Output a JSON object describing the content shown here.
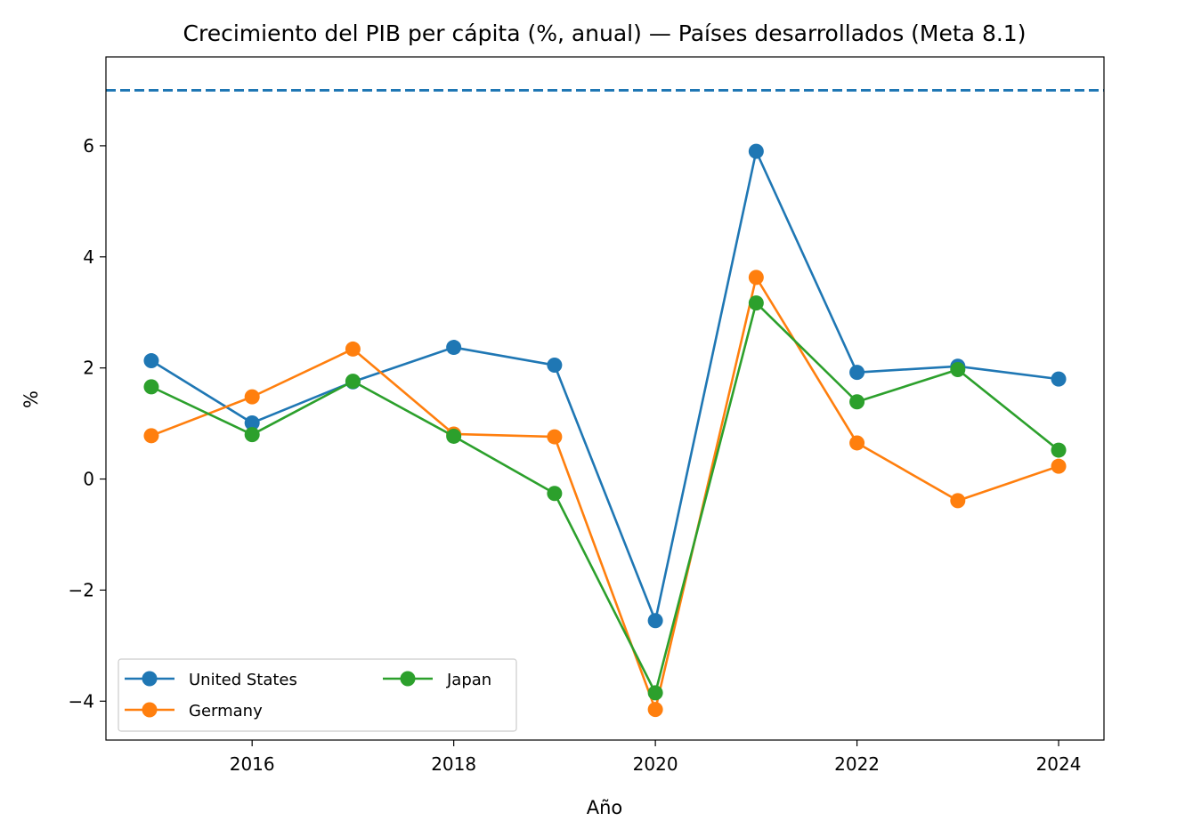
{
  "chart_data": {
    "type": "line",
    "title": "Crecimiento del PIB per cápita (%, anual) — Países desarrollados (Meta 8.1)",
    "xlabel": "Año",
    "ylabel": "%",
    "x": [
      2015,
      2016,
      2017,
      2018,
      2019,
      2020,
      2021,
      2022,
      2023,
      2024
    ],
    "xlim": [
      2014.55,
      2024.45
    ],
    "ylim": [
      -4.7,
      7.6
    ],
    "xticks": [
      2016,
      2018,
      2020,
      2022,
      2024
    ],
    "yticks": [
      -4,
      -2,
      0,
      2,
      4,
      6
    ],
    "xtick_labels": [
      "2016",
      "2018",
      "2020",
      "2022",
      "2024"
    ],
    "ytick_labels": [
      "−4",
      "−2",
      "0",
      "2",
      "4",
      "6"
    ],
    "target_line": {
      "y": 7,
      "style": "dashed",
      "color": "#1f77b4"
    },
    "grid": false,
    "legend_position": "lower-left",
    "legend_columns": 2,
    "series": [
      {
        "name": "United States",
        "color": "#1f77b4",
        "values": [
          2.13,
          1.01,
          1.75,
          2.37,
          2.05,
          -2.55,
          5.9,
          1.92,
          2.03,
          1.8
        ]
      },
      {
        "name": "Germany",
        "color": "#ff7f0e",
        "values": [
          0.78,
          1.48,
          2.34,
          0.81,
          0.76,
          -4.15,
          3.63,
          0.65,
          -0.39,
          0.23
        ]
      },
      {
        "name": "Japan",
        "color": "#2ca02c",
        "values": [
          1.66,
          0.8,
          1.76,
          0.77,
          -0.26,
          -3.85,
          3.17,
          1.39,
          1.97,
          0.52
        ]
      }
    ]
  }
}
